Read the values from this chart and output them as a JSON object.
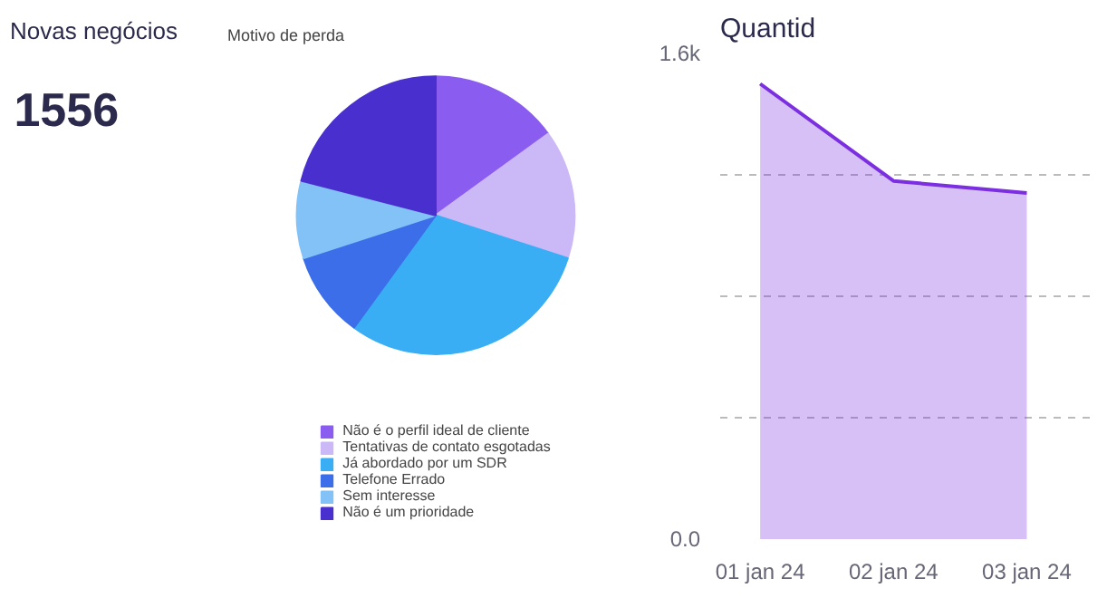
{
  "chart_data": [
    {
      "type": "other",
      "title": "Novas negócios",
      "annotations": [
        "1556"
      ]
    },
    {
      "type": "area",
      "title": "Quantid",
      "categories": [
        "01 jan 24",
        "02 jan 24",
        "03 jan 24"
      ],
      "series": [
        {
          "color": "#7b2fe0",
          "values": [
            1500,
            1180,
            1140
          ]
        }
      ],
      "ylim": [
        0,
        1600
      ],
      "yticks": [
        {
          "value": 0,
          "label": "0.0"
        },
        {
          "value": 400,
          "label": null
        },
        {
          "value": 800,
          "label": null
        },
        {
          "value": 1200,
          "label": null
        },
        {
          "value": 1600,
          "label": "1.6k"
        }
      ],
      "grid": "y",
      "marker": "none",
      "line_style": "solid"
    },
    {
      "type": "pie",
      "title": "Motivo de perda",
      "categories": [
        "Não é o perfil ideal de cliente",
        "Tentativas de contato esgotadas",
        "Já abordado por um SDR",
        "Telefone Errado",
        "Sem interesse",
        "Não é um prioridade"
      ],
      "values": [
        15,
        15,
        30,
        10,
        9,
        21
      ],
      "colors": [
        "#8b5cf0",
        "#cbb8f7",
        "#3aaef5",
        "#3b6ee8",
        "#82c2f7",
        "#4a2fcf"
      ],
      "legend": "bottom"
    }
  ]
}
